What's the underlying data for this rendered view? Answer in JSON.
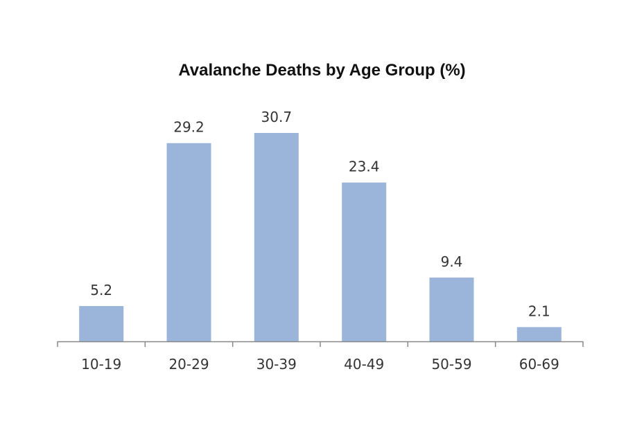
{
  "chart_data": {
    "type": "bar",
    "title": "Avalanche Deaths by Age Group (%)",
    "categories": [
      "10-19",
      "20-29",
      "30-39",
      "40-49",
      "50-59",
      "60-69"
    ],
    "values": [
      5.2,
      29.2,
      30.7,
      23.4,
      9.4,
      2.1
    ],
    "xlabel": "",
    "ylabel": "",
    "ylim": [
      0,
      30.7
    ],
    "grid": false,
    "legend": "none",
    "colors": {
      "bar": "#9bb4d9",
      "axis": "#888888",
      "text": "#333333"
    }
  }
}
